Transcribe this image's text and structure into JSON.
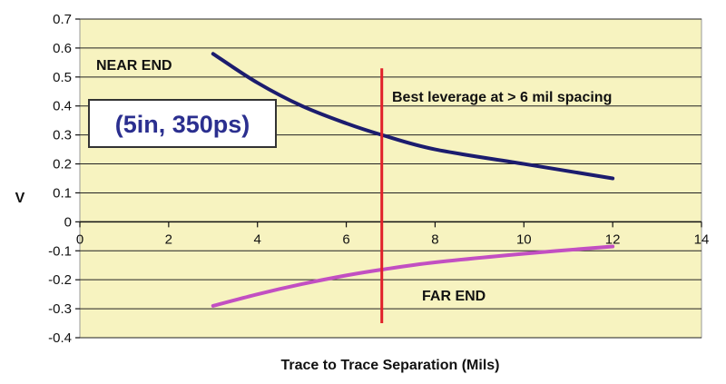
{
  "chart_data": {
    "type": "line",
    "title": "",
    "xlabel": "Trace to Trace Separation (Mils)",
    "ylabel": "V",
    "xlim": [
      0,
      14
    ],
    "ylim": [
      -0.4,
      0.7
    ],
    "x_ticks": [
      0,
      2,
      4,
      6,
      8,
      10,
      12,
      14
    ],
    "y_ticks": [
      0.7,
      0.6,
      0.5,
      0.4,
      0.3,
      0.2,
      0.1,
      0,
      -0.1,
      -0.2,
      -0.3,
      -0.4
    ],
    "y_tick_labels": [
      "0.7",
      "0.6",
      "0.5",
      "0.4",
      "0.3",
      "0.2",
      "0.1",
      "0",
      "-0.1",
      "-0.2",
      "-0.3",
      "-0.4"
    ],
    "grid": "horizontal",
    "plot_background": "#f7f3c0",
    "series": [
      {
        "name": "NEAR END",
        "color": "#1c1c6e",
        "x": [
          3,
          4,
          5,
          6,
          6.8,
          8,
          10,
          12
        ],
        "y": [
          0.58,
          0.48,
          0.4,
          0.34,
          0.3,
          0.25,
          0.2,
          0.15
        ]
      },
      {
        "name": "FAR END",
        "color": "#c24fc2",
        "x": [
          3,
          4,
          5,
          6,
          6.8,
          8,
          10,
          12
        ],
        "y": [
          -0.29,
          -0.25,
          -0.215,
          -0.185,
          -0.165,
          -0.14,
          -0.11,
          -0.085
        ]
      }
    ],
    "marker_line": {
      "x": 6.8,
      "color": "#e0202a"
    },
    "annotations": {
      "near_end_label": "NEAR END",
      "far_end_label": "FAR END",
      "leverage_note": "Best leverage at > 6 mil spacing",
      "boxed_label": "(5in, 350ps)",
      "boxed_color": "#2b2f8f"
    }
  }
}
